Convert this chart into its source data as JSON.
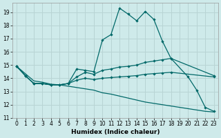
{
  "xlabel": "Humidex (Indice chaleur)",
  "bg_color": "#ceeaea",
  "grid_color": "#b8d4d4",
  "line_color": "#006868",
  "xlim": [
    -0.5,
    23.5
  ],
  "ylim": [
    11,
    19.7
  ],
  "yticks": [
    11,
    12,
    13,
    14,
    15,
    16,
    17,
    18,
    19
  ],
  "xticks": [
    0,
    1,
    2,
    3,
    4,
    5,
    6,
    7,
    8,
    9,
    10,
    11,
    12,
    13,
    14,
    15,
    16,
    17,
    18,
    19,
    20,
    21,
    22,
    23
  ],
  "curve_main_x": [
    0,
    1,
    2,
    3,
    4,
    5,
    6,
    7,
    8,
    9,
    10,
    11,
    12,
    13,
    14,
    15,
    16,
    17,
    18,
    20,
    21,
    22,
    23
  ],
  "curve_main_y": [
    14.9,
    14.2,
    13.6,
    13.6,
    13.5,
    13.5,
    13.6,
    14.7,
    14.6,
    14.5,
    16.9,
    17.3,
    19.3,
    18.85,
    18.35,
    19.05,
    18.45,
    16.8,
    15.5,
    14.1,
    13.1,
    11.8,
    11.5
  ],
  "curve_upper_x": [
    0,
    1,
    2,
    3,
    4,
    5,
    6,
    7,
    8,
    9,
    10,
    11,
    12,
    13,
    14,
    15,
    16,
    17,
    18,
    23
  ],
  "curve_upper_y": [
    14.9,
    14.2,
    13.6,
    13.6,
    13.5,
    13.5,
    13.6,
    14.1,
    14.45,
    14.3,
    14.6,
    14.7,
    14.85,
    14.9,
    15.0,
    15.2,
    15.3,
    15.4,
    15.5,
    14.2
  ],
  "curve_mid_x": [
    0,
    1,
    2,
    3,
    4,
    5,
    6,
    7,
    8,
    9,
    10,
    11,
    12,
    13,
    14,
    15,
    16,
    17,
    18,
    23
  ],
  "curve_mid_y": [
    14.9,
    14.2,
    13.6,
    13.6,
    13.5,
    13.5,
    13.6,
    13.85,
    14.0,
    13.9,
    14.0,
    14.05,
    14.1,
    14.15,
    14.2,
    14.3,
    14.35,
    14.4,
    14.45,
    14.1
  ],
  "curve_lower_x": [
    0,
    1,
    2,
    3,
    4,
    5,
    6,
    7,
    8,
    9,
    10,
    11,
    12,
    13,
    14,
    15,
    16,
    17,
    18,
    19,
    20,
    21,
    22,
    23
  ],
  "curve_lower_y": [
    14.9,
    14.35,
    13.8,
    13.7,
    13.55,
    13.5,
    13.4,
    13.3,
    13.2,
    13.1,
    12.9,
    12.8,
    12.65,
    12.5,
    12.35,
    12.2,
    12.1,
    12.0,
    11.9,
    11.8,
    11.7,
    11.6,
    11.5,
    11.45
  ]
}
